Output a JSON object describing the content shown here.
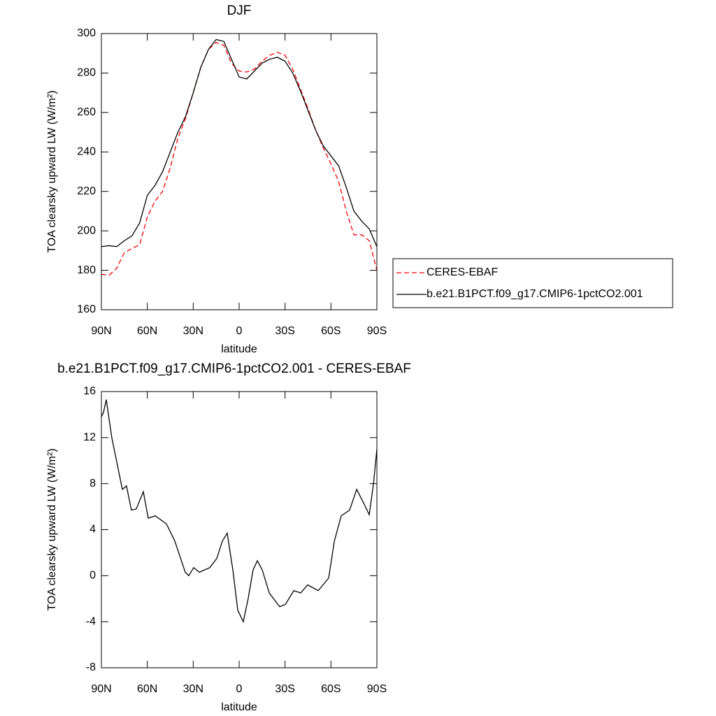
{
  "chart_data": [
    {
      "type": "line",
      "title": "DJF",
      "x_label": "latitude",
      "y_label": "TOA clearsky upward LW (W/m²)",
      "x": [
        90,
        85,
        80,
        75,
        70,
        65,
        60,
        55,
        50,
        45,
        40,
        35,
        30,
        25,
        20,
        15,
        10,
        5,
        0,
        -5,
        -10,
        -15,
        -20,
        -25,
        -30,
        -35,
        -40,
        -45,
        -50,
        -55,
        -60,
        -65,
        -70,
        -75,
        -80,
        -85,
        -90
      ],
      "series": [
        {
          "name": "CERES-EBAF",
          "color": "#ff0000",
          "dash": true,
          "values": [
            178,
            177.5,
            181,
            189,
            191,
            193,
            207,
            215,
            220,
            232,
            247,
            257,
            270,
            283,
            292,
            295.5,
            294,
            285,
            281,
            280.5,
            282,
            286,
            289,
            290.5,
            289,
            282,
            272,
            262,
            251,
            242,
            234,
            225,
            210,
            198,
            198,
            195,
            180
          ]
        },
        {
          "name": "b.e21.B1PCT.f09_g17.CMIP6-1pctCO2.001",
          "color": "#000000",
          "dash": false,
          "values": [
            192,
            192.5,
            192,
            195,
            197.5,
            204,
            218,
            223,
            230,
            240,
            250,
            258,
            270,
            283,
            292,
            297,
            296,
            287,
            278,
            277,
            281,
            285,
            287,
            288,
            286,
            280,
            271,
            261,
            251,
            243,
            238,
            233,
            222,
            210,
            205,
            201,
            192
          ]
        }
      ],
      "xlim": [
        90,
        -90
      ],
      "xticks": [
        {
          "value": 90,
          "label": "90N"
        },
        {
          "value": 60,
          "label": "60N"
        },
        {
          "value": 30,
          "label": "30N"
        },
        0,
        {
          "value": -30,
          "label": "30S"
        },
        {
          "value": -60,
          "label": "60S"
        },
        {
          "value": -90,
          "label": "90S"
        }
      ],
      "ylim": [
        160,
        300
      ],
      "yticks": [
        160,
        180,
        200,
        220,
        240,
        260,
        280,
        300
      ],
      "legend": "right"
    },
    {
      "type": "line",
      "title": "b.e21.B1PCT.f09_g17.CMIP6-1pctCO2.001 - CERES-EBAF",
      "x_label": "latitude",
      "y_label": "TOA clearsky upward LW (W/m²)",
      "x": [
        90,
        88.6,
        86.8,
        83.2,
        80.9,
        76.3,
        73.6,
        70.4,
        67.2,
        62.6,
        59.4,
        54.8,
        47.5,
        42,
        35.2,
        32.9,
        29.7,
        26,
        19.2,
        14.6,
        11,
        7.8,
        4.1,
        0.9,
        -2.7,
        -5.9,
        -9.1,
        -11.9,
        -15.1,
        -19.7,
        -26.5,
        -30.2,
        -35.7,
        -40.2,
        -44.8,
        -51.7,
        -58.5,
        -62.2,
        -66.7,
        -72.2,
        -76.8,
        -81.4,
        -85,
        -87.8,
        -90
      ],
      "series": [
        {
          "name": "b.e21.B1PCT.f09_g17.CMIP6-1pctCO2.001 - CERES-EBAF",
          "color": "#000000",
          "dash": false,
          "values": [
            13.8,
            14.2,
            15.3,
            12,
            10.5,
            7.5,
            7.8,
            5.7,
            5.8,
            7.3,
            5,
            5.2,
            4.5,
            3,
            0.3,
            0,
            0.7,
            0.3,
            0.7,
            1.5,
            3,
            3.7,
            0.5,
            -3,
            -4,
            -2,
            0.5,
            1.3,
            0.5,
            -1.5,
            -2.7,
            -2.5,
            -1.3,
            -1.5,
            -0.8,
            -1.3,
            -0.2,
            3,
            5.2,
            5.7,
            7.5,
            6.3,
            5.3,
            8,
            11
          ]
        }
      ],
      "xlim": [
        90,
        -90
      ],
      "xticks": [
        {
          "value": 90,
          "label": "90N"
        },
        {
          "value": 60,
          "label": "60N"
        },
        {
          "value": 30,
          "label": "30N"
        },
        0,
        {
          "value": -30,
          "label": "30S"
        },
        {
          "value": -60,
          "label": "60S"
        },
        {
          "value": -90,
          "label": "90S"
        }
      ],
      "ylim": [
        -8,
        16
      ],
      "yticks": [
        -8,
        -4,
        0,
        4,
        8,
        12,
        16
      ]
    }
  ]
}
